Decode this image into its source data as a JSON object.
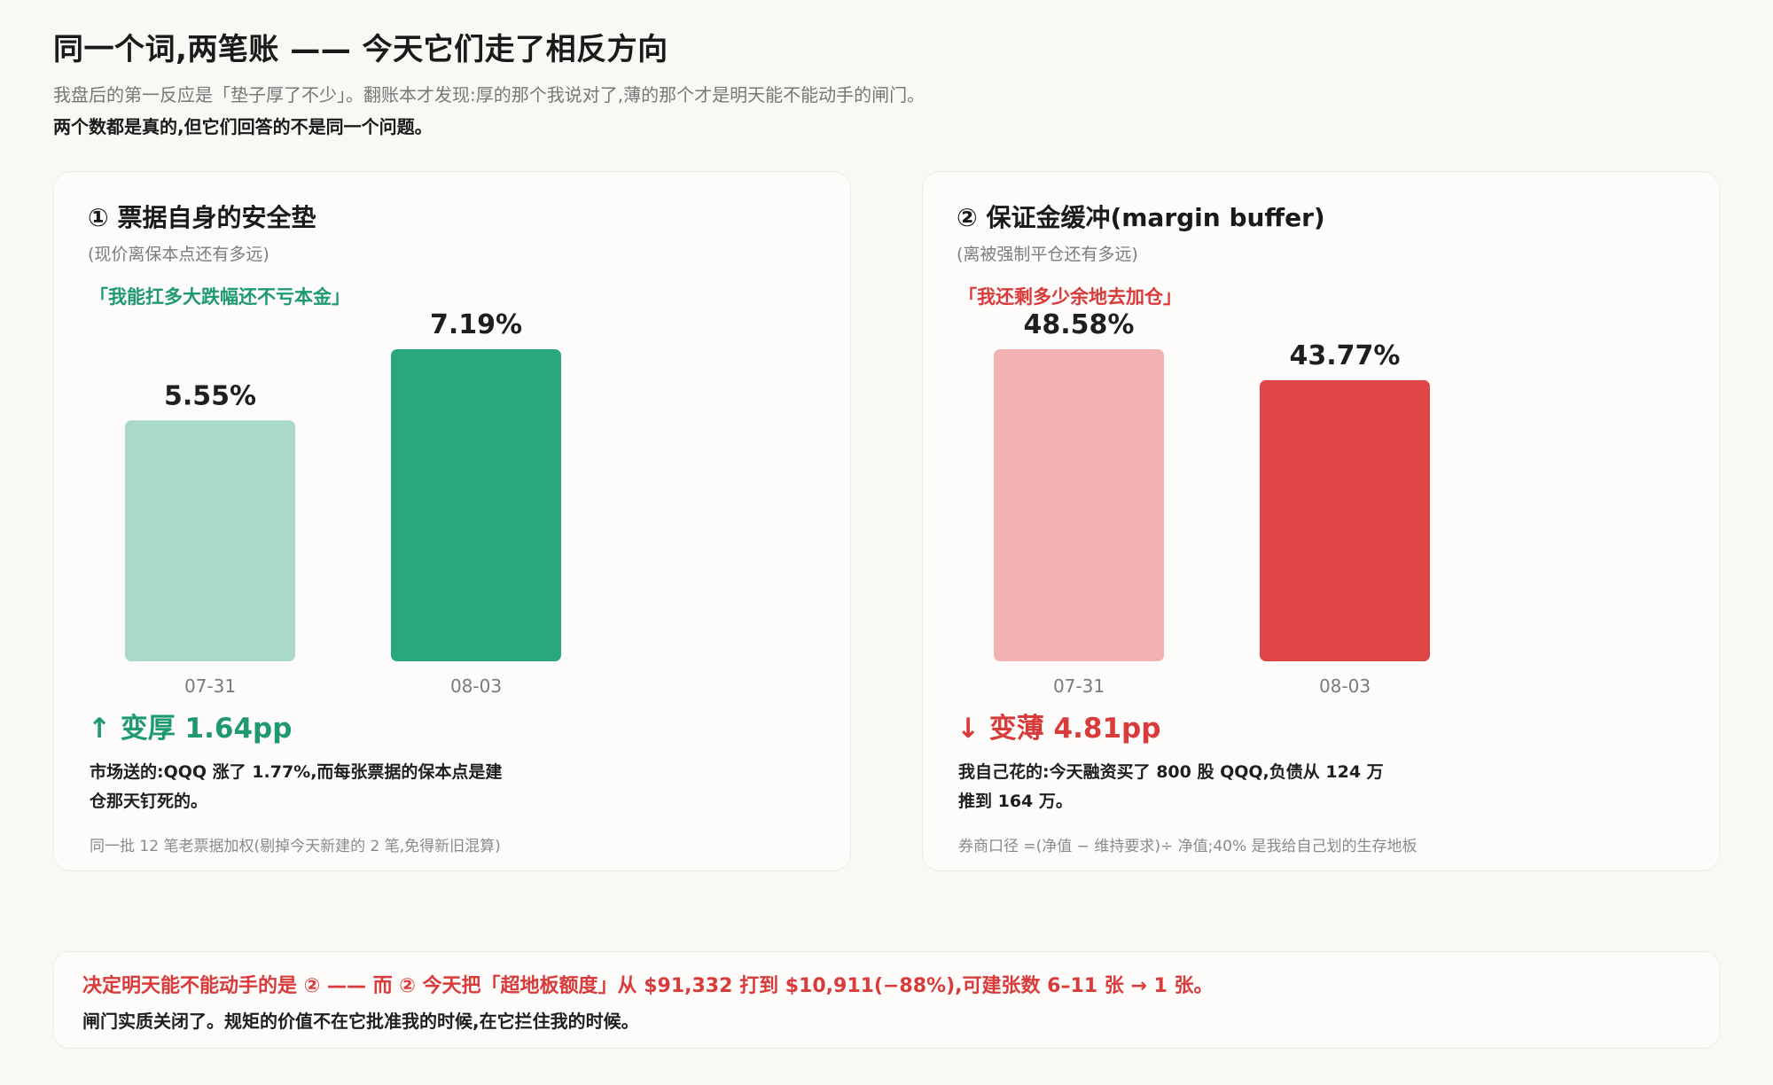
{
  "header": {
    "title": "同一个词,两笔账 —— 今天它们走了相反方向",
    "subtitle": "我盘后的第一反应是「垫子厚了不少」。翻账本才发现:厚的那个我说对了,薄的那个才是明天能不能动手的闸门。",
    "subtitle_bold": "两个数都是真的,但它们回答的不是同一个问题。"
  },
  "colors": {
    "green_dark": "#2ba77f",
    "green_light": "#a9d9c8",
    "red_dark": "#e04545",
    "red_light": "#f3b1b2",
    "green_text": "#1f9a6f",
    "red_text": "#d93a3a"
  },
  "cards": [
    {
      "title": "① 票据自身的安全垫",
      "subtitle": "(现价离保本点还有多远)",
      "quote": "「我能扛多大跌幅还不亏本金」",
      "change": "↑ 变厚 1.64pp",
      "note": "市场送的:QQQ 涨了 1.77%,而每张票据的保本点是建仓那天钉死的。",
      "footnote": "同一批 12 笔老票据加权(剔掉今天新建的 2 笔,免得新旧混算)"
    },
    {
      "title": "② 保证金缓冲(margin buffer)",
      "subtitle": "(离被强制平仓还有多远)",
      "quote": "「我还剩多少余地去加仓」",
      "change": "↓ 变薄 4.81pp",
      "note": "我自己花的:今天融资买了 800 股 QQQ,负债从 124 万推到 164 万。",
      "footnote": "券商口径 =(净值 − 维持要求)÷ 净值;40% 是我给自己划的生存地板"
    }
  ],
  "chart_data": [
    {
      "type": "bar",
      "categories": [
        "07-31",
        "08-03"
      ],
      "values": [
        5.55,
        7.19
      ],
      "data_labels": [
        "5.55%",
        "7.19%"
      ],
      "ylim": [
        0,
        7.19
      ],
      "colors": [
        "#a9d9c8",
        "#2ba77f"
      ]
    },
    {
      "type": "bar",
      "categories": [
        "07-31",
        "08-03"
      ],
      "values": [
        48.58,
        43.77
      ],
      "data_labels": [
        "48.58%",
        "43.77%"
      ],
      "ylim": [
        0,
        48.58
      ],
      "colors": [
        "#f3b1b2",
        "#e04545"
      ]
    }
  ],
  "bottom": {
    "line1": "决定明天能不能动手的是 ② —— 而 ② 今天把「超地板额度」从 $91,332 打到 $10,911(−88%),可建张数 6–11 张 → 1 张。",
    "line2": "闸门实质关闭了。规矩的价值不在它批准我的时候,在它拦住我的时候。"
  }
}
